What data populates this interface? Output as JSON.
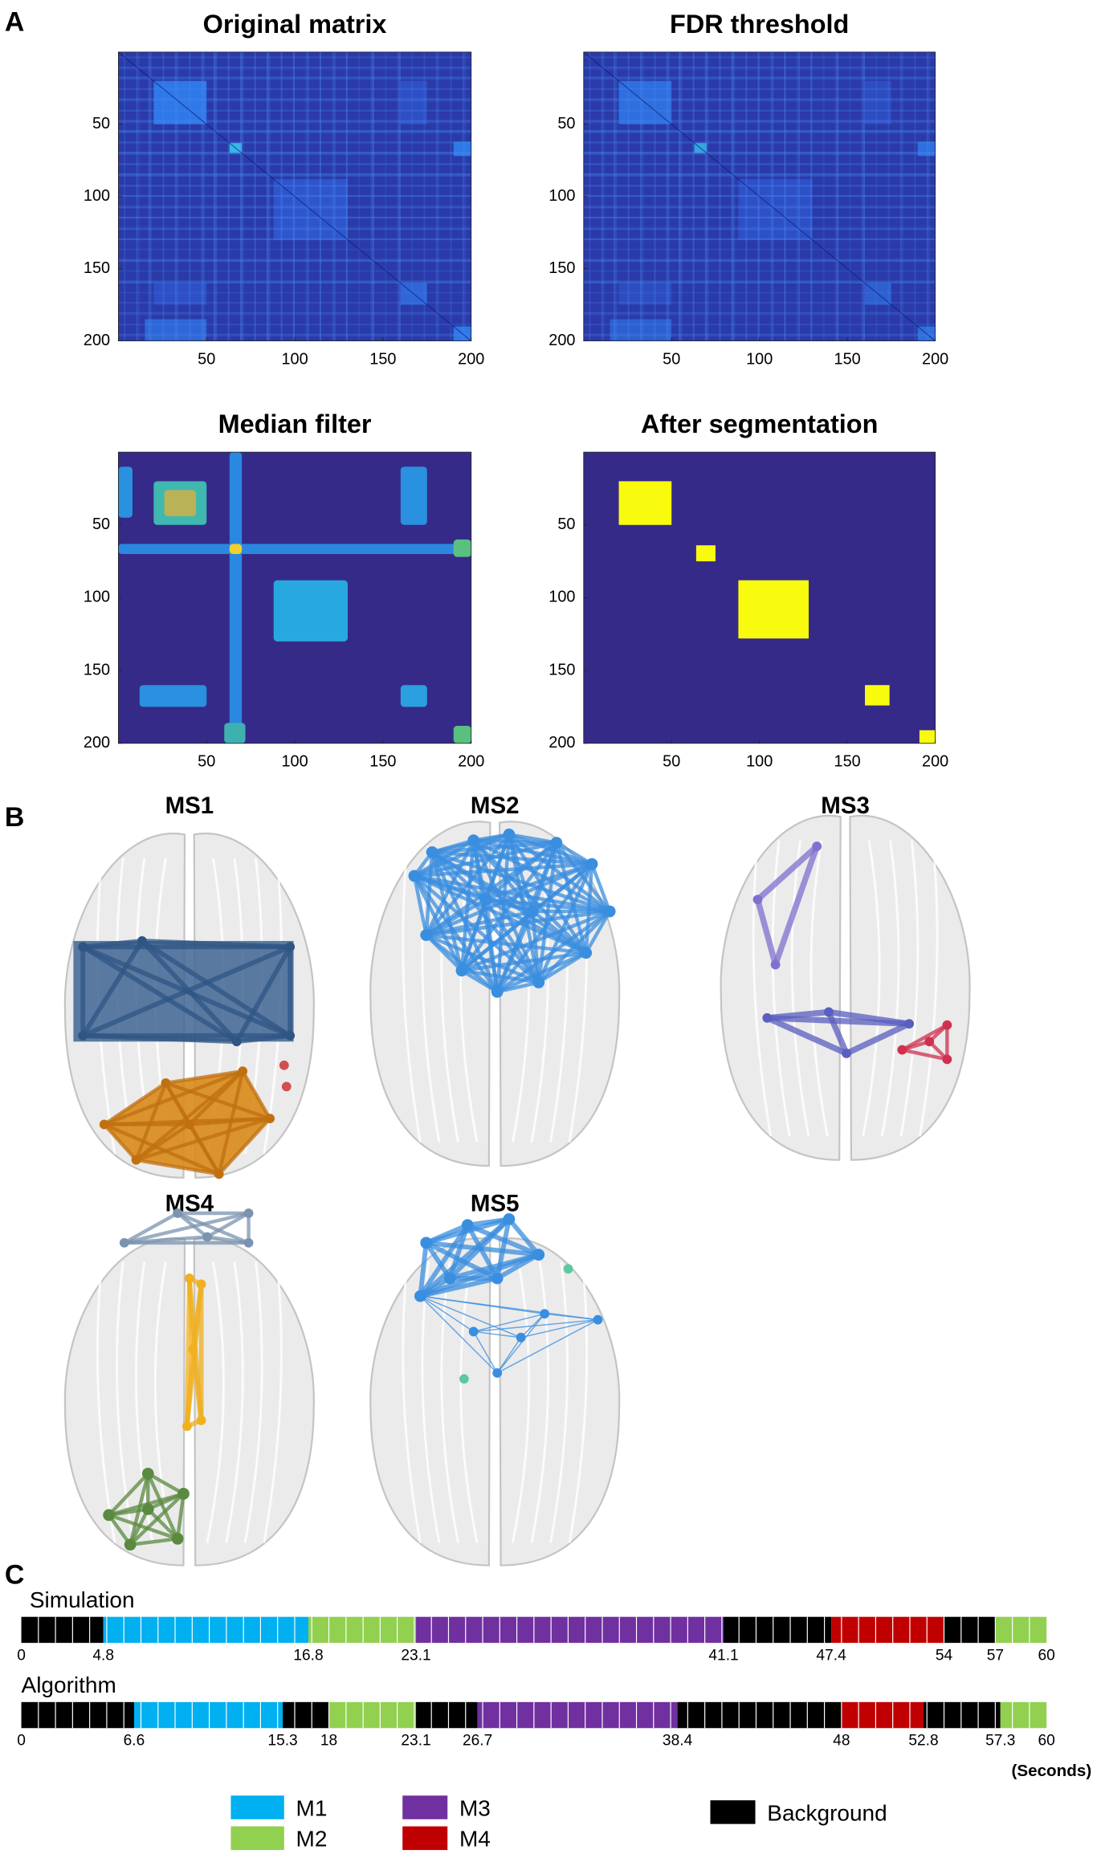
{
  "panel_labels": [
    "A",
    "B",
    "C"
  ],
  "chart_data": [
    {
      "type": "heatmap",
      "title": "Original matrix",
      "xlim": [
        0,
        200
      ],
      "ylim": [
        0,
        200
      ],
      "xticks": [
        50,
        100,
        150,
        200
      ],
      "yticks": [
        50,
        100,
        150,
        200
      ]
    },
    {
      "type": "heatmap",
      "title": "FDR threshold",
      "xlim": [
        0,
        200
      ],
      "ylim": [
        0,
        200
      ],
      "xticks": [
        50,
        100,
        150,
        200
      ],
      "yticks": [
        50,
        100,
        150,
        200
      ]
    },
    {
      "type": "heatmap",
      "title": "Median filter",
      "xlim": [
        0,
        200
      ],
      "ylim": [
        0,
        200
      ],
      "xticks": [
        50,
        100,
        150,
        200
      ],
      "yticks": [
        50,
        100,
        150,
        200
      ]
    },
    {
      "type": "heatmap",
      "title": "After segmentation",
      "xlim": [
        0,
        200
      ],
      "ylim": [
        0,
        200
      ],
      "xticks": [
        50,
        100,
        150,
        200
      ],
      "yticks": [
        50,
        100,
        150,
        200
      ],
      "color": "#352a87",
      "block_color": "#f9fb0e",
      "blocks": [
        {
          "start": 20,
          "end": 50
        },
        {
          "start": 64,
          "end": 75
        },
        {
          "start": 88,
          "end": 128
        },
        {
          "start": 160,
          "end": 174
        },
        {
          "start": 191,
          "end": 200
        }
      ]
    },
    {
      "type": "timeline",
      "xlim": [
        0,
        60
      ],
      "x_unit": "(Seconds)",
      "rows": [
        {
          "name": "Simulation",
          "ticks": [
            0,
            4.8,
            16.8,
            23.1,
            41.1,
            47.4,
            54,
            57,
            60
          ],
          "states": [
            "Background",
            "M1",
            "M2",
            "M3",
            "Background",
            "M4",
            "Background",
            "M2"
          ]
        },
        {
          "name": "Algorithm",
          "ticks": [
            0,
            6.6,
            15.3,
            18,
            23.1,
            26.7,
            38.4,
            48,
            52.8,
            57.3,
            60
          ],
          "states": [
            "Background",
            "M1",
            "Background",
            "M2",
            "Background",
            "M3",
            "Background",
            "M4",
            "Background",
            "M2"
          ]
        }
      ],
      "legend": [
        {
          "name": "M1",
          "color": "#00b0f0"
        },
        {
          "name": "M2",
          "color": "#92d050"
        },
        {
          "name": "M3",
          "color": "#7030a0"
        },
        {
          "name": "M4",
          "color": "#c00000"
        },
        {
          "name": "Background",
          "color": "#000000"
        }
      ]
    }
  ],
  "networks": {
    "titles": [
      "MS1",
      "MS2",
      "MS3",
      "MS4",
      "MS5"
    ]
  }
}
